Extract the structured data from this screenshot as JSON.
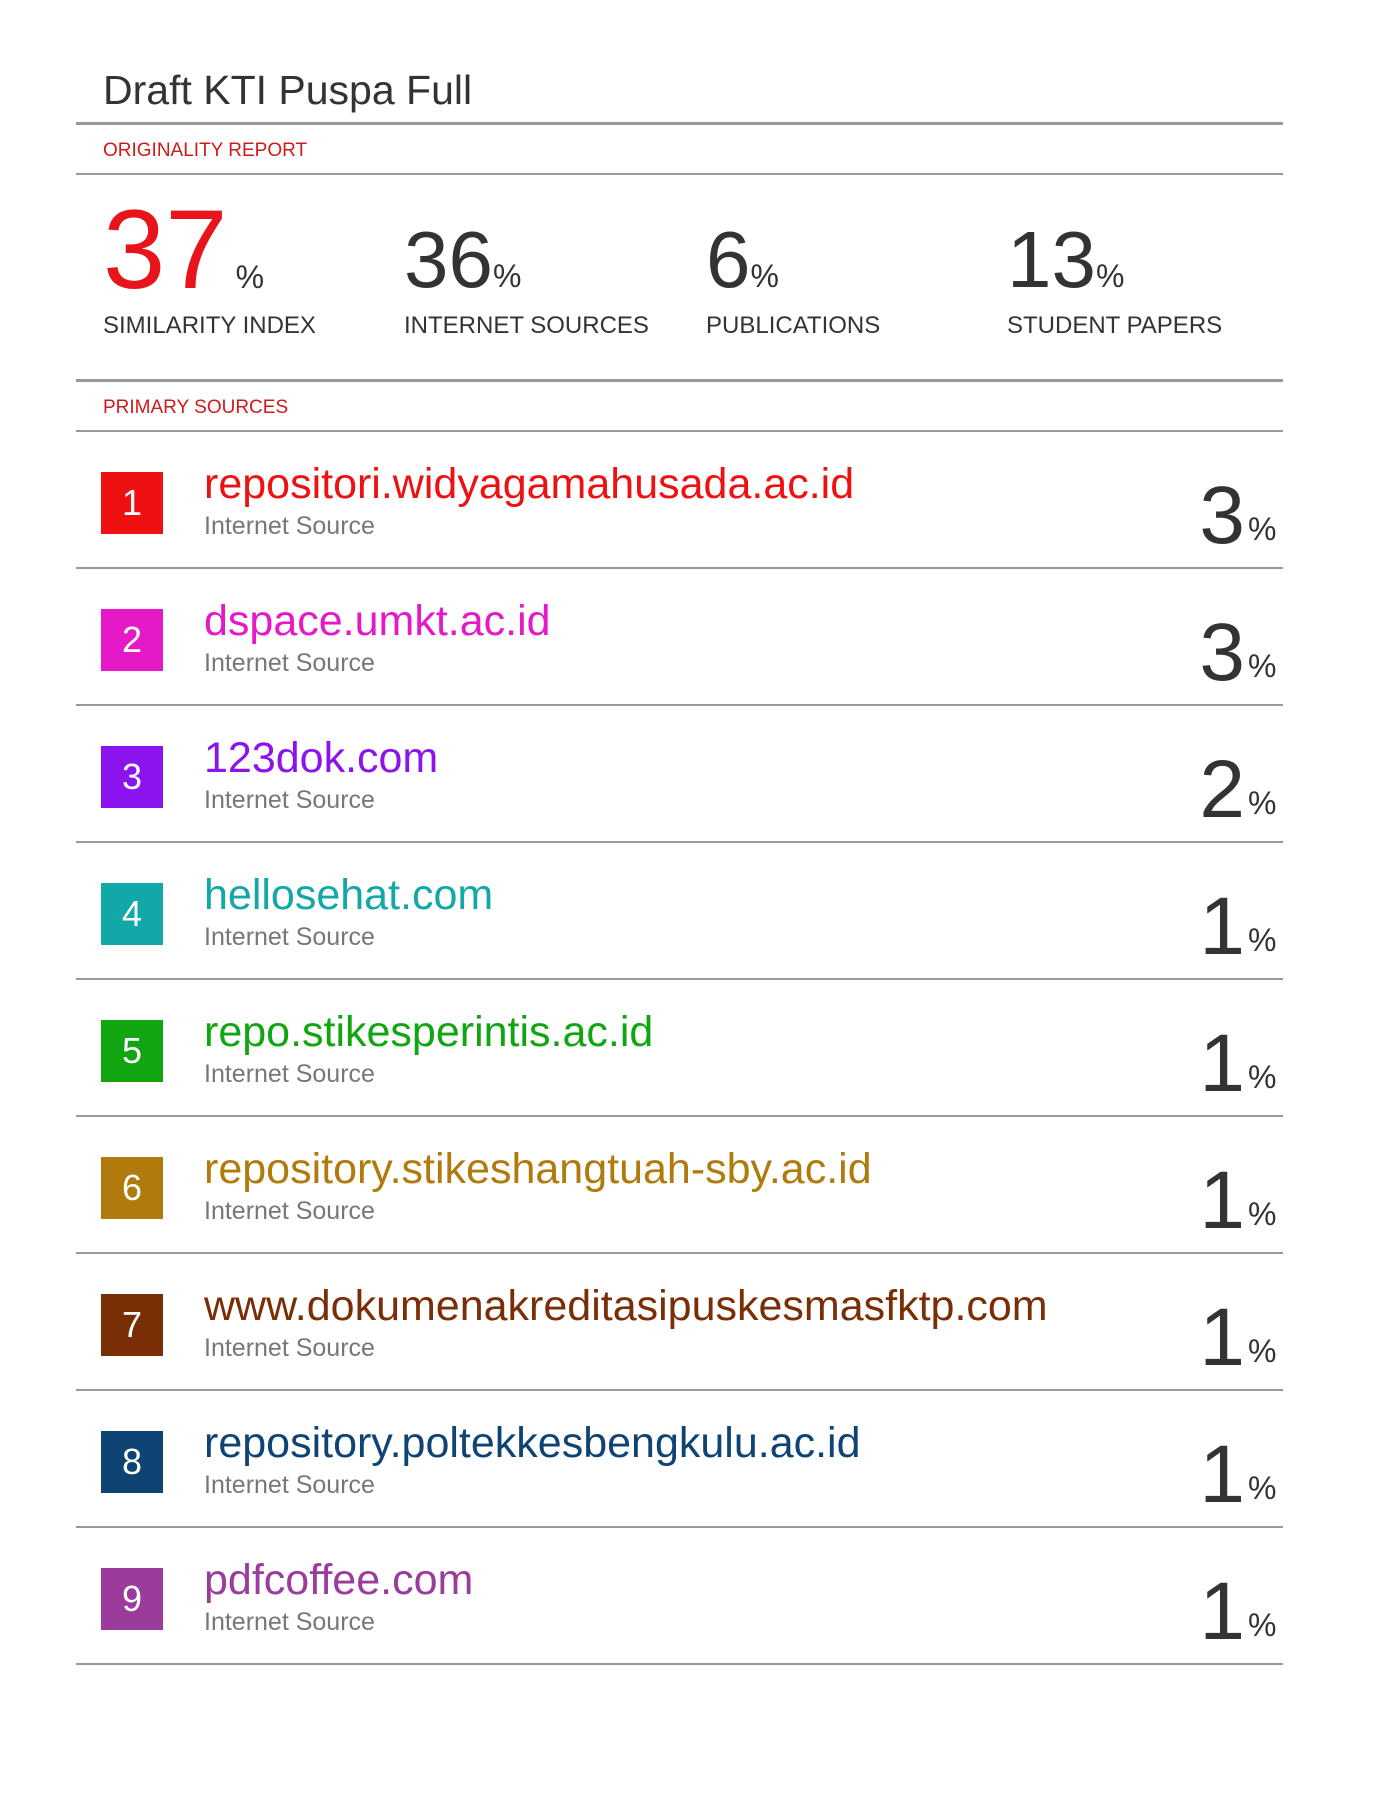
{
  "header": {
    "title": "Draft KTI Puspa Full",
    "section": "ORIGINALITY REPORT"
  },
  "stats": [
    {
      "value": "37",
      "unit": "%",
      "label": "SIMILARITY INDEX",
      "color": "#e8141b"
    },
    {
      "value": "36",
      "unit": "%",
      "label": "INTERNET SOURCES",
      "color": "#333333"
    },
    {
      "value": "6",
      "unit": "%",
      "label": "PUBLICATIONS",
      "color": "#333333"
    },
    {
      "value": "13",
      "unit": "%",
      "label": "STUDENT PAPERS",
      "color": "#333333"
    }
  ],
  "sources_heading": "PRIMARY SOURCES",
  "sources": [
    {
      "rank": "1",
      "name": "repositori.widyagamahusada.ac.id",
      "type": "Internet Source",
      "percent": "3",
      "unit": "%",
      "color": "#ee1111"
    },
    {
      "rank": "2",
      "name": "dspace.umkt.ac.id",
      "type": "Internet Source",
      "percent": "3",
      "unit": "%",
      "color": "#e619c9"
    },
    {
      "rank": "3",
      "name": "123dok.com",
      "type": "Internet Source",
      "percent": "2",
      "unit": "%",
      "color": "#8a13ee"
    },
    {
      "rank": "4",
      "name": "hellosehat.com",
      "type": "Internet Source",
      "percent": "1",
      "unit": "%",
      "color": "#12a8a8"
    },
    {
      "rank": "5",
      "name": "repo.stikesperintis.ac.id",
      "type": "Internet Source",
      "percent": "1",
      "unit": "%",
      "color": "#11a611"
    },
    {
      "rank": "6",
      "name": "repository.stikeshangtuah-sby.ac.id",
      "type": "Internet Source",
      "percent": "1",
      "unit": "%",
      "color": "#b07a0c"
    },
    {
      "rank": "7",
      "name": "www.dokumenakreditasipuskesmasfktp.com",
      "type": "Internet Source",
      "percent": "1",
      "unit": "%",
      "color": "#7a2e06"
    },
    {
      "rank": "8",
      "name": "repository.poltekkesbengkulu.ac.id",
      "type": "Internet Source",
      "percent": "1",
      "unit": "%",
      "color": "#0e4374"
    },
    {
      "rank": "9",
      "name": "pdfcoffee.com",
      "type": "Internet Source",
      "percent": "1",
      "unit": "%",
      "color": "#9b3b9b"
    }
  ]
}
